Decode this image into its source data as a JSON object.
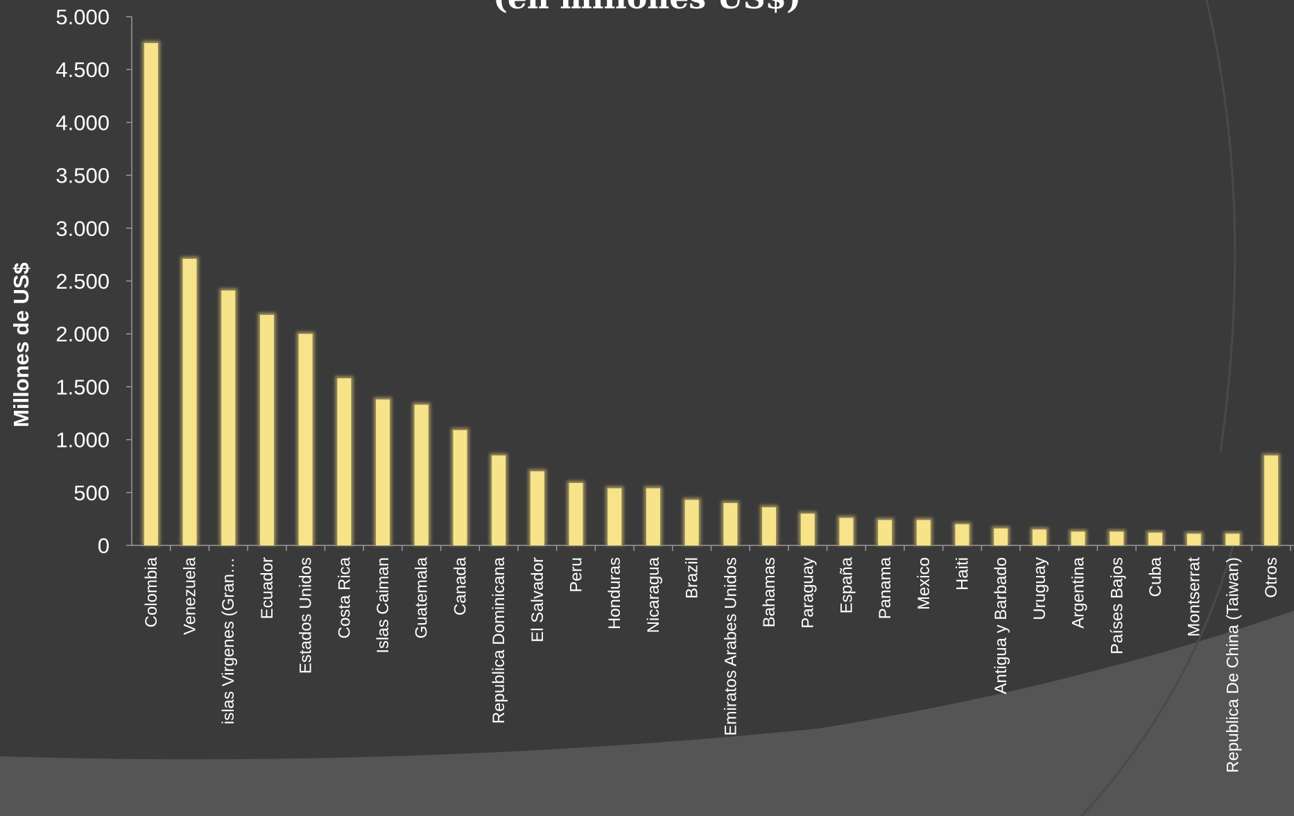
{
  "chart_data": {
    "type": "bar",
    "title": "(en millones US$)",
    "ylabel": "Millones de  US$",
    "xlabel": "",
    "ylim": [
      0,
      5000
    ],
    "yticks": [
      0,
      500,
      1000,
      1500,
      2000,
      2500,
      3000,
      3500,
      4000,
      4500,
      5000
    ],
    "ytick_labels": [
      "0",
      "500",
      "1.000",
      "1.500",
      "2.000",
      "2.500",
      "3.000",
      "3.500",
      "4.000",
      "4.500",
      "5.000"
    ],
    "grid": false,
    "legend": "none",
    "bar_color": "#f7e38a",
    "bar_edge_color": "#a89a60",
    "categories": [
      "Colombia",
      "Venezuela",
      "islas Virgenes (Gran…",
      "Ecuador",
      "Estados Unidos",
      "Costa Rica",
      "Islas Caiman",
      "Guatemala",
      "Canada",
      "Republica Dominicana",
      "El Salvador",
      "Peru",
      "Honduras",
      "Nicaragua",
      "Brazil",
      "Emiratos Arabes Unidos",
      "Bahamas",
      "Paraguay",
      "España",
      "Panama",
      "Mexico",
      "Haiti",
      "Antigua y Barbado",
      "Uruguay",
      "Argentina",
      "Países Bajos",
      "Cuba",
      "Montserrat",
      "Republica De China (Taiwan)",
      "Otros"
    ],
    "values": [
      4750,
      2710,
      2410,
      2180,
      2000,
      1580,
      1380,
      1330,
      1090,
      850,
      700,
      590,
      540,
      540,
      430,
      400,
      360,
      300,
      260,
      240,
      240,
      200,
      160,
      150,
      130,
      130,
      120,
      110,
      110,
      850
    ]
  }
}
